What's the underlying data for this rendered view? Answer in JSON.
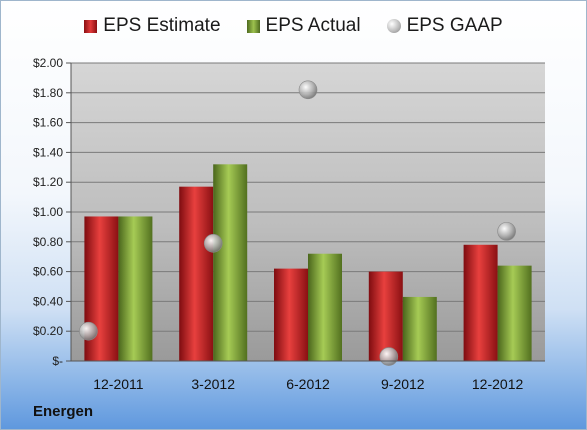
{
  "chart_data": {
    "type": "bar",
    "categories": [
      "12-2011",
      "3-2012",
      "6-2012",
      "9-2012",
      "12-2012"
    ],
    "series": [
      {
        "name": "EPS Estimate",
        "kind": "bar",
        "color": "#c8191f",
        "values": [
          0.97,
          1.17,
          0.62,
          0.6,
          0.78
        ]
      },
      {
        "name": "EPS Actual",
        "kind": "bar",
        "color": "#82a83a",
        "values": [
          0.97,
          1.32,
          0.72,
          0.43,
          0.64
        ]
      },
      {
        "name": "EPS GAAP",
        "kind": "scatter",
        "color": "#a8a8a8",
        "values": [
          0.2,
          0.79,
          1.82,
          0.03,
          0.87
        ]
      }
    ],
    "yticks": [
      "$-",
      "$0.20",
      "$0.40",
      "$0.60",
      "$0.80",
      "$1.00",
      "$1.20",
      "$1.40",
      "$1.60",
      "$1.80",
      "$2.00"
    ],
    "ylim": [
      0,
      2.0
    ],
    "grid": true,
    "legend_position": "top"
  },
  "footer": {
    "company": "Energen"
  }
}
